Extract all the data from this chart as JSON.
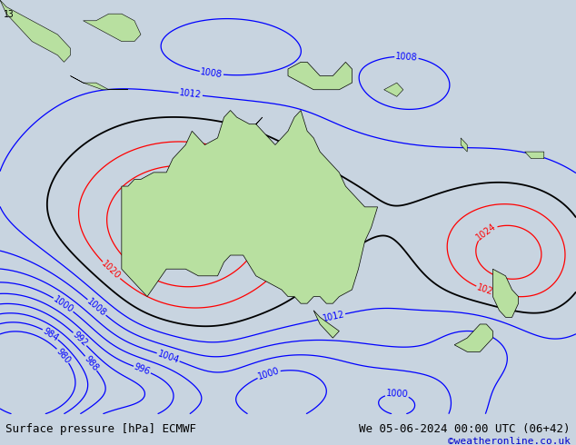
{
  "title_left": "Surface pressure [hPa] ECMWF",
  "title_right": "We 05-06-2024 00:00 UTC (06+42)",
  "credit": "©weatheronline.co.uk",
  "bg_color": "#c8d4e0",
  "land_color": "#b8e0a0",
  "ocean_color": "#c8d4e0",
  "title_fontsize": 9,
  "credit_color": "#0000cc",
  "contour_color_low": "#0000ff",
  "contour_color_high": "#ff0000",
  "contour_color_mid": "#000000",
  "label_fontsize": 7,
  "lon_min": 95,
  "lon_max": 185,
  "lat_min": -55,
  "lat_max": 5
}
